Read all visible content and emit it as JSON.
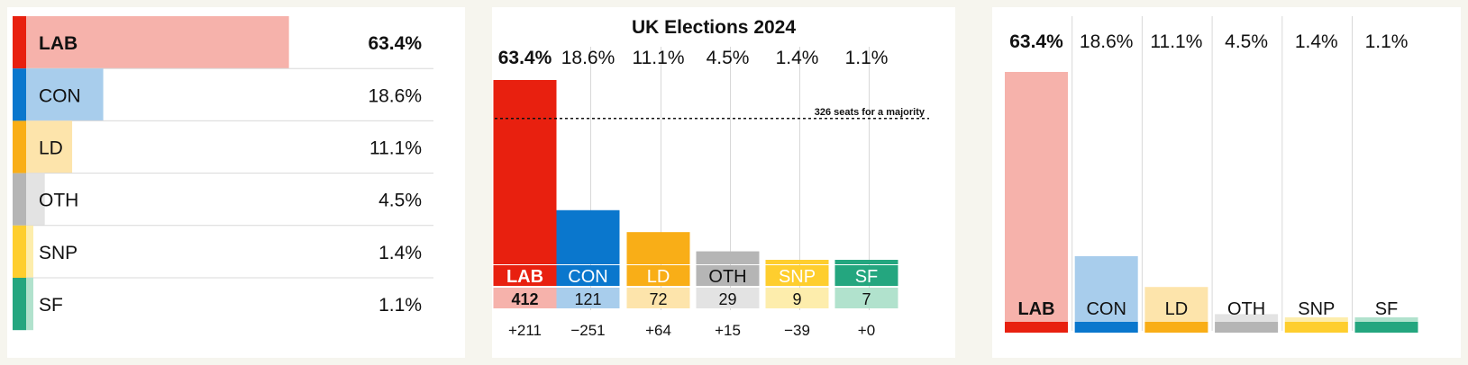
{
  "colors": {
    "LAB": {
      "main": "#e8200f",
      "light": "#f6b2ab"
    },
    "CON": {
      "main": "#0a77cd",
      "light": "#a8cdec"
    },
    "LD": {
      "main": "#f9ae17",
      "light": "#fde4ab"
    },
    "OTH": {
      "main": "#b5b5b5",
      "light": "#e3e3e3"
    },
    "SNP": {
      "main": "#fece2e",
      "light": "#fdedac"
    },
    "SF": {
      "main": "#24a67f",
      "light": "#b1e2cd"
    }
  },
  "chart_data": [
    {
      "type": "bar",
      "orientation": "horizontal",
      "categories": [
        "LAB",
        "CON",
        "LD",
        "OTH",
        "SNP",
        "SF"
      ],
      "values": [
        63.4,
        18.6,
        11.1,
        4.5,
        1.4,
        1.1
      ],
      "value_labels": [
        "63.4%",
        "18.6%",
        "11.1%",
        "4.5%",
        "1.4%",
        "1.1%"
      ],
      "title": "",
      "xlim": [
        0,
        100
      ],
      "grid": false
    },
    {
      "type": "bar",
      "title": "UK Elections 2024",
      "categories": [
        "LAB",
        "CON",
        "LD",
        "OTH",
        "SNP",
        "SF"
      ],
      "share_labels": [
        "63.4%",
        "18.6%",
        "11.1%",
        "4.5%",
        "1.4%",
        "1.1%"
      ],
      "seats": [
        412,
        121,
        72,
        29,
        9,
        7
      ],
      "change_labels": [
        "+211",
        "−251",
        "+64",
        "+15",
        "−39",
        "+0"
      ],
      "majority_line": 326,
      "majority_label": "326 seats for a majority",
      "ylim": [
        0,
        412
      ],
      "grid": false
    },
    {
      "type": "bar",
      "categories": [
        "LAB",
        "CON",
        "LD",
        "OTH",
        "SNP",
        "SF"
      ],
      "values": [
        63.4,
        18.6,
        11.1,
        4.5,
        1.4,
        1.1
      ],
      "value_labels": [
        "63.4%",
        "18.6%",
        "11.1%",
        "4.5%",
        "1.4%",
        "1.1%"
      ],
      "title": "",
      "ylim": [
        0,
        63.4
      ],
      "grid": false
    }
  ]
}
